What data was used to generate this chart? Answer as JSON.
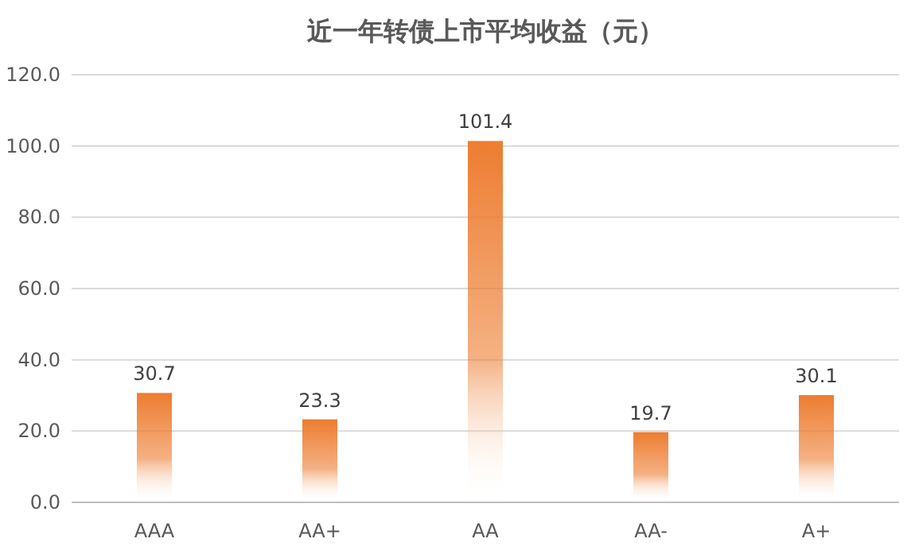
{
  "chart_data": {
    "type": "bar",
    "title": "近一年转债上市平均收益（元）",
    "categories": [
      "AAA",
      "AA+",
      "AA",
      "AA-",
      "A+"
    ],
    "values": [
      30.7,
      23.3,
      101.4,
      19.7,
      30.1
    ],
    "color": "#ed7d31",
    "ylim": [
      0,
      120
    ],
    "yticks": [
      {
        "value": 0,
        "label": "0.0"
      },
      {
        "value": 20,
        "label": "20.0"
      },
      {
        "value": 40,
        "label": "40.0"
      },
      {
        "value": 60,
        "label": "60.0"
      },
      {
        "value": 80,
        "label": "80.0"
      },
      {
        "value": 100,
        "label": "100.0"
      },
      {
        "value": 120,
        "label": "120.0"
      }
    ],
    "grid": "y",
    "data_labels": true
  }
}
